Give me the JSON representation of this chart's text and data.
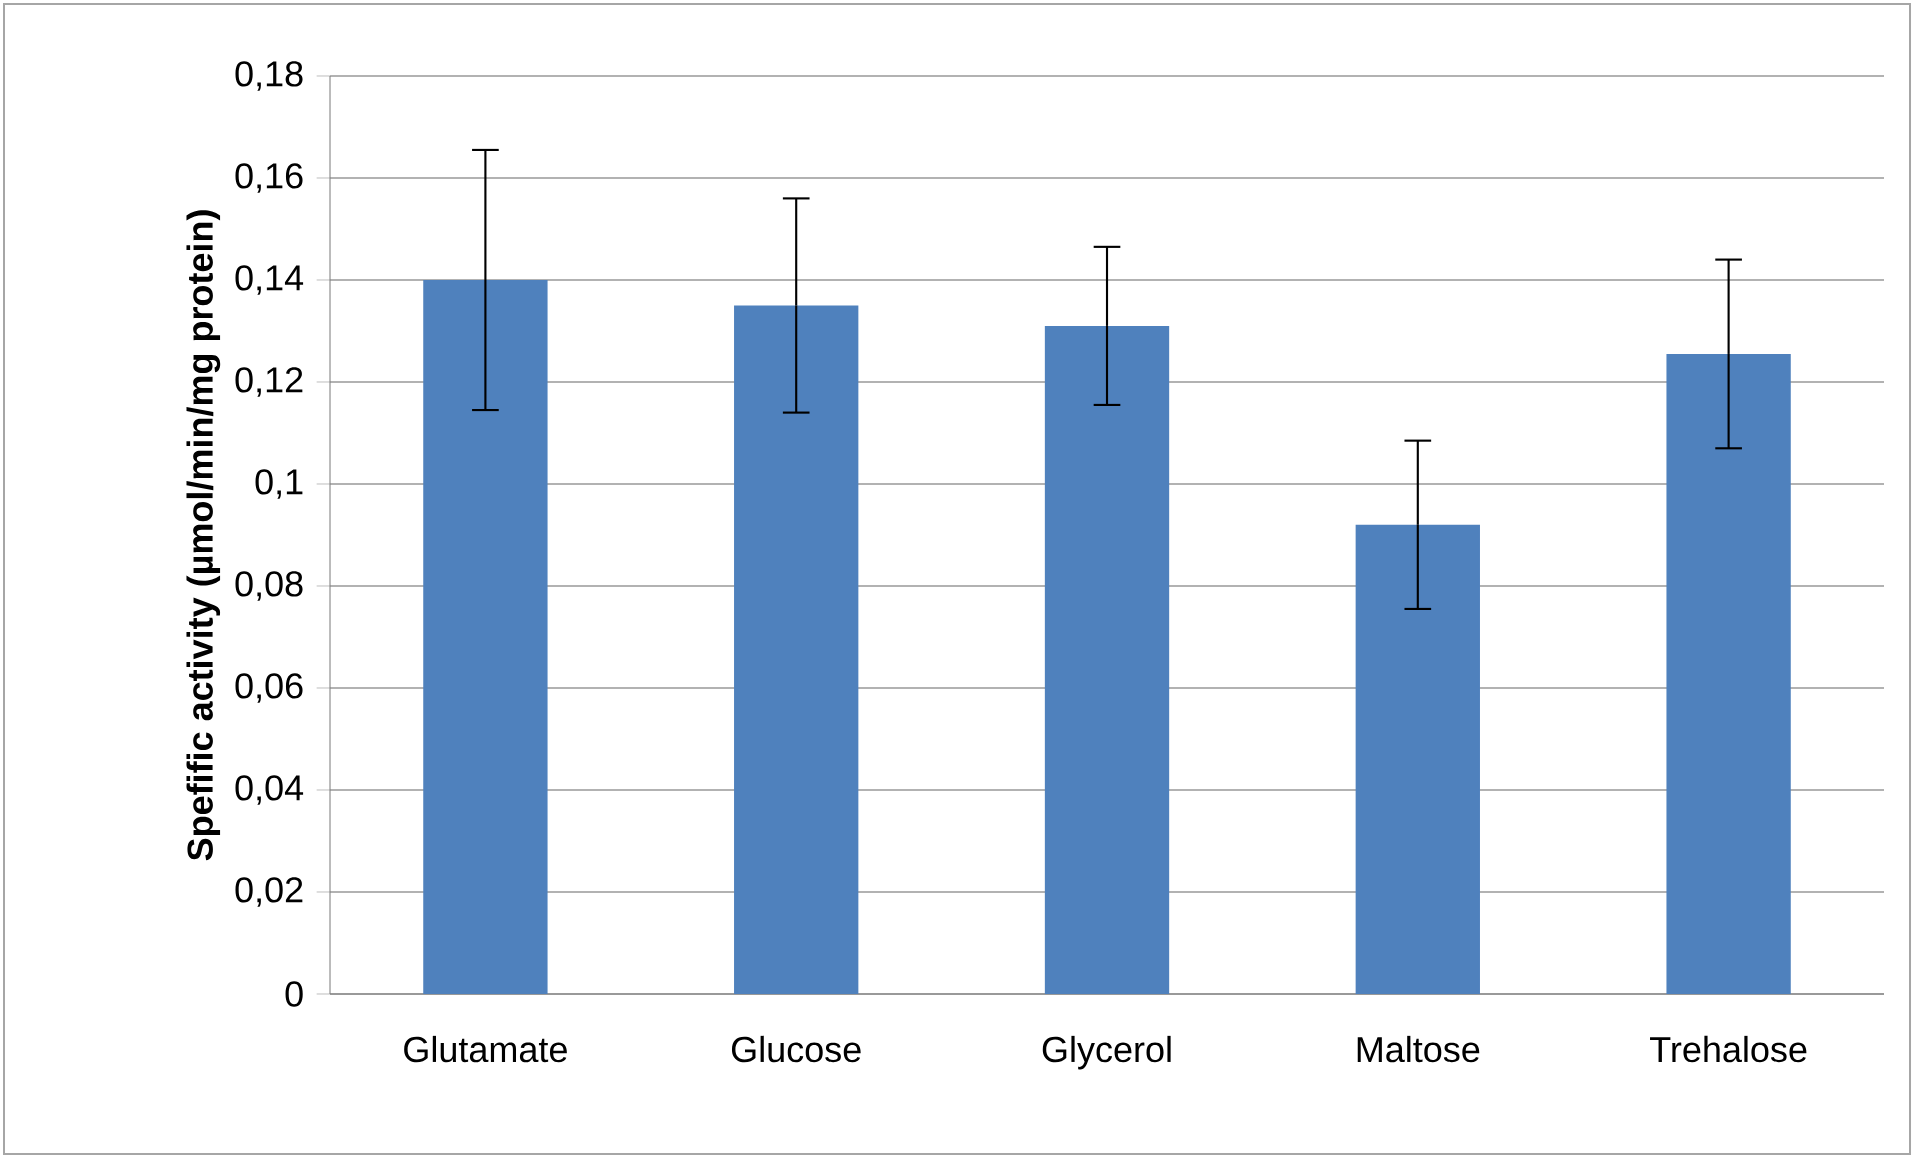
{
  "chart_data": {
    "type": "bar",
    "ylabel": "Spefific activity (µmol/min/mg protein)",
    "categories": [
      "Glutamate",
      "Glucose",
      "Glycerol",
      "Maltose",
      "Trehalose"
    ],
    "values": [
      0.14,
      0.135,
      0.131,
      0.092,
      0.1255
    ],
    "errors": [
      0.0255,
      0.021,
      0.0155,
      0.0165,
      0.0185
    ],
    "color": "#4f81bd",
    "ylim": [
      0,
      0.18
    ],
    "yticks": [
      0,
      {
        "value": 0.02,
        "label": "0,02"
      },
      {
        "value": 0.04,
        "label": "0,04"
      },
      {
        "value": 0.06,
        "label": "0,06"
      },
      {
        "value": 0.08,
        "label": "0,08"
      },
      {
        "value": 0.1,
        "label": "0,1"
      },
      {
        "value": 0.12,
        "label": "0,12"
      },
      {
        "value": 0.14,
        "label": "0,14"
      },
      {
        "value": 0.16,
        "label": "0,16"
      },
      {
        "value": 0.18,
        "label": "0,18"
      }
    ],
    "grid": "y"
  }
}
